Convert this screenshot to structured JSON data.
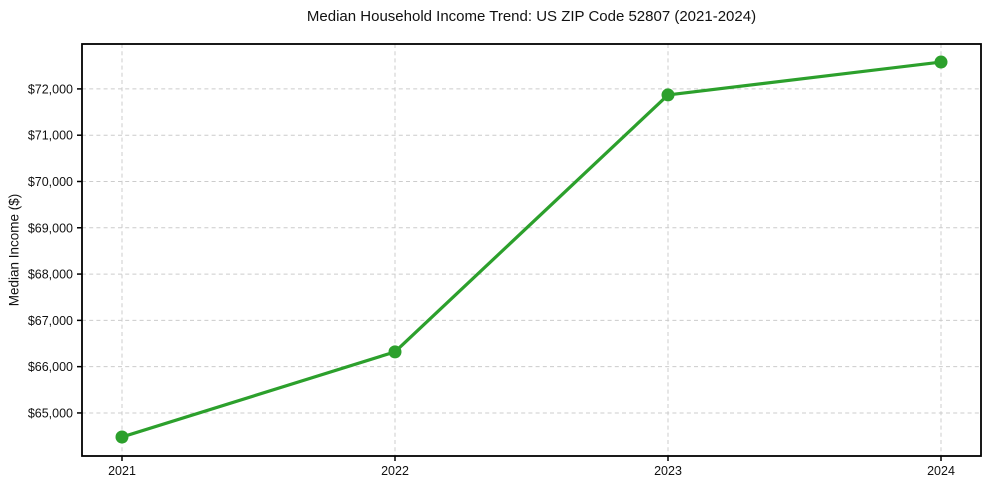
{
  "chart_data": {
    "type": "line",
    "title": "Median Household Income Trend: US ZIP Code 52807 (2021-2024)",
    "xlabel": "",
    "ylabel": "Median Income ($)",
    "x_labels": [
      "2021",
      "2022",
      "2023",
      "2024"
    ],
    "values": [
      64480,
      66320,
      71870,
      72580
    ],
    "ylim": [
      64070,
      72970
    ],
    "ytick_values": [
      65000,
      66000,
      67000,
      68000,
      69000,
      70000,
      71000,
      72000
    ],
    "ytick_labels": [
      "$65,000",
      "$66,000",
      "$67,000",
      "$68,000",
      "$69,000",
      "$70,000",
      "$71,000",
      "$72,000"
    ],
    "grid": "dashed-both-axes",
    "legend": "none",
    "marker": "circle",
    "colors": {
      "line": "#2ca02c",
      "marker": "#2ca02c",
      "grid": "#cccccc",
      "axis_border": "#000000",
      "text": "#111111",
      "background": "#ffffff"
    }
  }
}
